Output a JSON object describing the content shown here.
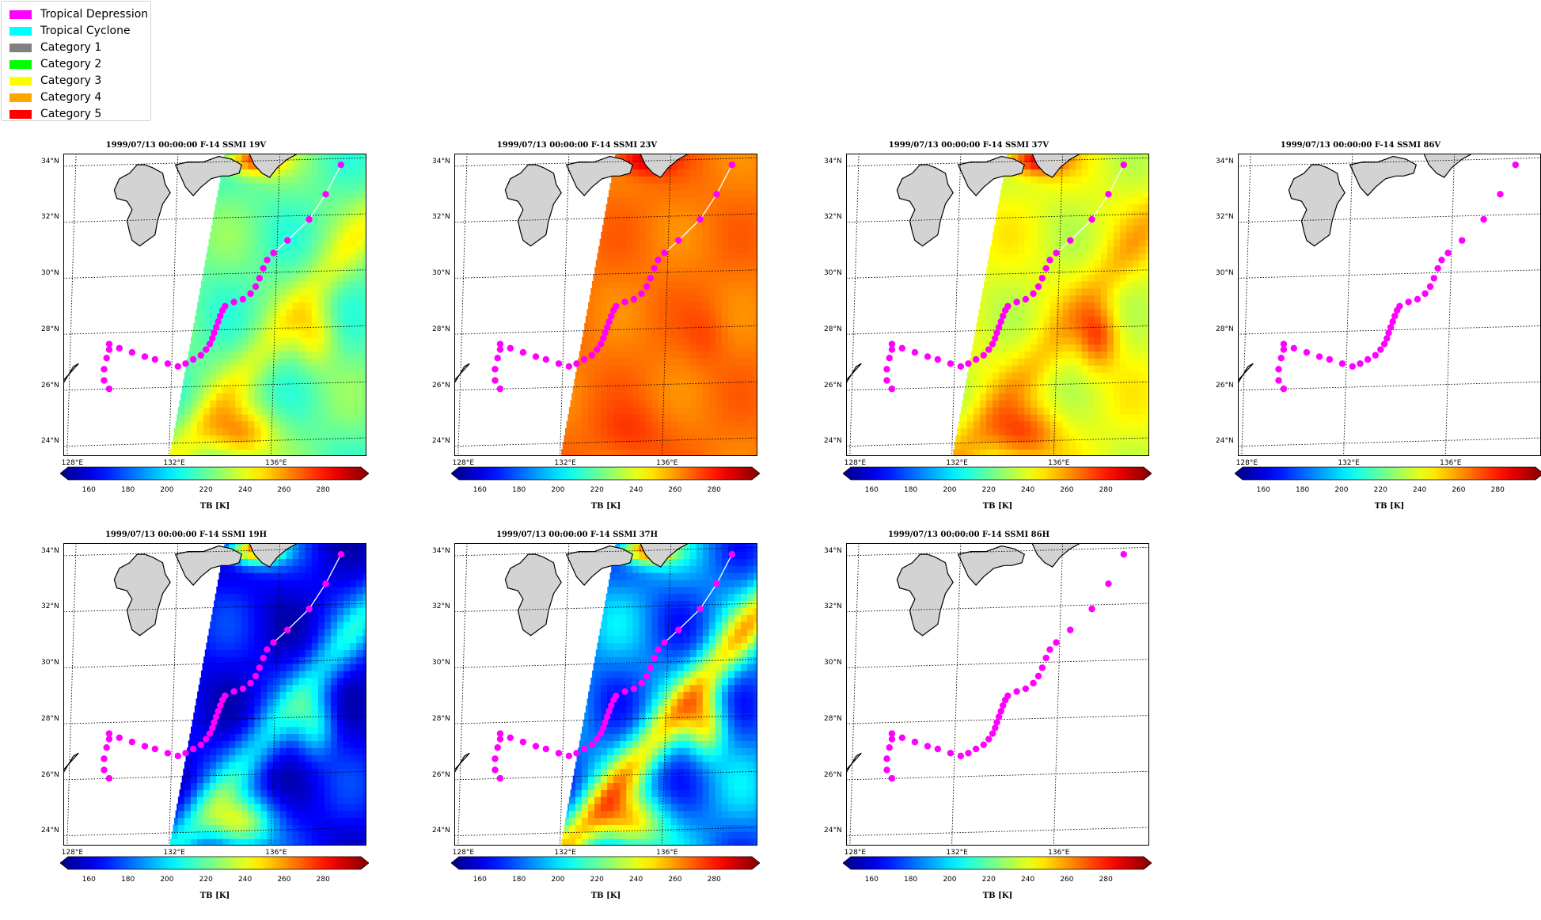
{
  "legend": {
    "items": [
      {
        "label": "Tropical Depression",
        "color": "#ff00ff"
      },
      {
        "label": "Tropical Cyclone",
        "color": "#00ffff"
      },
      {
        "label": "Category 1",
        "color": "#808080"
      },
      {
        "label": "Category 2",
        "color": "#00ff00"
      },
      {
        "label": "Category 3",
        "color": "#ffff00"
      },
      {
        "label": "Category 4",
        "color": "#ffa500"
      },
      {
        "label": "Category 5",
        "color": "#ff0000"
      }
    ]
  },
  "lat_labels": [
    "34°N",
    "32°N",
    "30°N",
    "28°N",
    "26°N",
    "24°N"
  ],
  "lon_labels": [
    "128°E",
    "132°E",
    "136°E"
  ],
  "colorbar": {
    "ticks": [
      "160",
      "180",
      "200",
      "220",
      "240",
      "260",
      "280"
    ],
    "label": "TB [K]"
  },
  "track": {
    "points": [
      [
        129.5,
        25.9
      ],
      [
        129.3,
        26.2
      ],
      [
        129.3,
        26.6
      ],
      [
        129.4,
        27.0
      ],
      [
        129.5,
        27.3
      ],
      [
        129.5,
        27.5
      ],
      [
        129.9,
        27.35
      ],
      [
        130.4,
        27.2
      ],
      [
        130.9,
        27.05
      ],
      [
        131.3,
        26.95
      ],
      [
        131.8,
        26.8
      ],
      [
        132.2,
        26.7
      ],
      [
        132.5,
        26.8
      ],
      [
        132.8,
        26.95
      ],
      [
        133.1,
        27.1
      ],
      [
        133.3,
        27.3
      ],
      [
        133.45,
        27.5
      ],
      [
        133.55,
        27.7
      ],
      [
        133.62,
        27.9
      ],
      [
        133.7,
        28.1
      ],
      [
        133.78,
        28.3
      ],
      [
        133.86,
        28.5
      ],
      [
        133.95,
        28.7
      ],
      [
        134.05,
        28.85
      ],
      [
        134.4,
        29.0
      ],
      [
        134.75,
        29.1
      ],
      [
        135.05,
        29.3
      ],
      [
        135.25,
        29.55
      ],
      [
        135.4,
        29.85
      ],
      [
        135.55,
        30.2
      ],
      [
        135.7,
        30.5
      ],
      [
        135.95,
        30.75
      ],
      [
        136.5,
        31.2
      ],
      [
        137.35,
        31.95
      ],
      [
        138.0,
        32.85
      ],
      [
        138.6,
        33.9
      ]
    ],
    "line_start_index": 31
  },
  "panels": [
    {
      "title": "1999/07/13 00:00:00  F-14 SSMI 19V",
      "field": "19V"
    },
    {
      "title": "1999/07/13 00:00:00  F-14 SSMI 23V",
      "field": "23V"
    },
    {
      "title": "1999/07/13 00:00:00  F-14 SSMI 37V",
      "field": "37V"
    },
    {
      "title": "1999/07/13 00:00:00  F-14 SSMI 86V",
      "field": "none"
    },
    {
      "title": "1999/07/13 00:00:00  F-14 SSMI 19H",
      "field": "19H"
    },
    {
      "title": "1999/07/13 00:00:00  F-14 SSMI 37H",
      "field": "37H"
    },
    {
      "title": "1999/07/13 00:00:00  F-14 SSMI 86H",
      "field": "none"
    }
  ]
}
